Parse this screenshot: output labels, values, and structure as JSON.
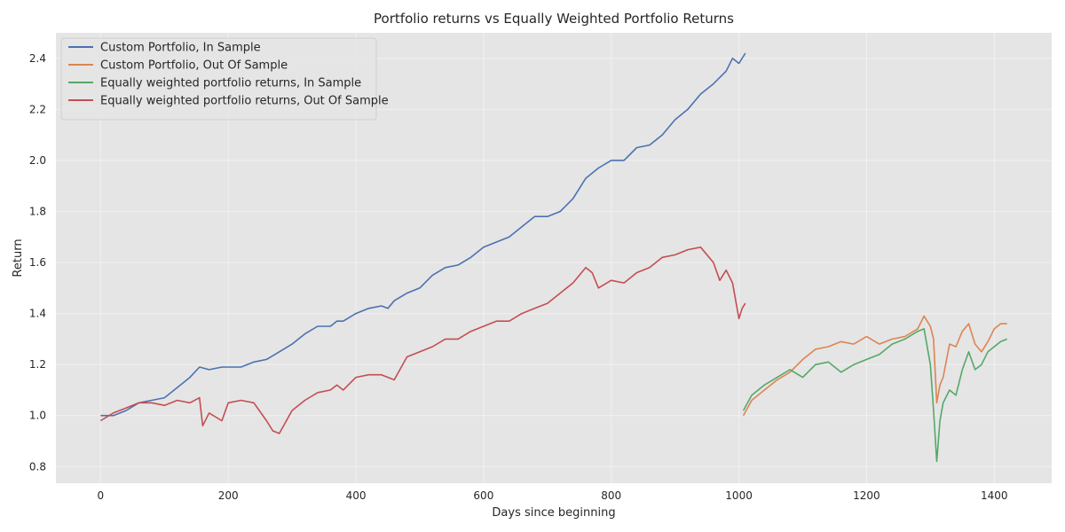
{
  "chart_data": {
    "type": "line",
    "title": "Portfolio returns vs Equally Weighted Portfolio Returns",
    "xlabel": "Days since beginning",
    "ylabel": "Return",
    "xlim": [
      -70,
      1490
    ],
    "ylim": [
      0.735,
      2.5
    ],
    "xticks": [
      0,
      200,
      400,
      600,
      800,
      1000,
      1200,
      1400
    ],
    "yticks": [
      0.8,
      1.0,
      1.2,
      1.4,
      1.6,
      1.8,
      2.0,
      2.2,
      2.4
    ],
    "grid": true,
    "legend_position": "top-left",
    "background": "#e5e5e5",
    "series": [
      {
        "name": "Custom Portfolio, In Sample",
        "color": "#4c72b0",
        "x": [
          0,
          20,
          40,
          60,
          80,
          100,
          120,
          140,
          155,
          170,
          190,
          200,
          220,
          240,
          260,
          280,
          300,
          320,
          340,
          360,
          370,
          380,
          400,
          420,
          440,
          450,
          460,
          480,
          500,
          520,
          540,
          560,
          580,
          600,
          620,
          640,
          660,
          680,
          700,
          720,
          740,
          760,
          770,
          780,
          800,
          820,
          840,
          860,
          880,
          900,
          920,
          940,
          960,
          980,
          990,
          1000,
          1010
        ],
        "y": [
          1.0,
          1.0,
          1.02,
          1.05,
          1.06,
          1.07,
          1.11,
          1.15,
          1.19,
          1.18,
          1.19,
          1.19,
          1.19,
          1.21,
          1.22,
          1.25,
          1.28,
          1.32,
          1.35,
          1.35,
          1.37,
          1.37,
          1.4,
          1.42,
          1.43,
          1.42,
          1.45,
          1.48,
          1.5,
          1.55,
          1.58,
          1.59,
          1.62,
          1.66,
          1.68,
          1.7,
          1.74,
          1.78,
          1.78,
          1.8,
          1.85,
          1.93,
          1.95,
          1.97,
          2.0,
          2.0,
          2.05,
          2.06,
          2.1,
          2.16,
          2.2,
          2.26,
          2.3,
          2.35,
          2.4,
          2.38,
          2.42
        ]
      },
      {
        "name": "Custom Portfolio, Out Of Sample",
        "color": "#dd8452",
        "x": [
          1007,
          1020,
          1040,
          1060,
          1080,
          1100,
          1120,
          1140,
          1160,
          1180,
          1200,
          1220,
          1240,
          1260,
          1280,
          1290,
          1300,
          1305,
          1310,
          1315,
          1320,
          1330,
          1340,
          1350,
          1360,
          1370,
          1380,
          1390,
          1400,
          1410,
          1420
        ],
        "y": [
          1.0,
          1.06,
          1.1,
          1.14,
          1.17,
          1.22,
          1.26,
          1.27,
          1.29,
          1.28,
          1.31,
          1.28,
          1.3,
          1.31,
          1.34,
          1.39,
          1.35,
          1.3,
          1.05,
          1.12,
          1.15,
          1.28,
          1.27,
          1.33,
          1.36,
          1.28,
          1.25,
          1.29,
          1.34,
          1.36,
          1.36
        ]
      },
      {
        "name": "Equally weighted portfolio returns, In Sample",
        "color": "#55a868",
        "x": [
          1007,
          1020,
          1040,
          1060,
          1080,
          1100,
          1120,
          1140,
          1160,
          1180,
          1200,
          1220,
          1240,
          1260,
          1280,
          1290,
          1300,
          1305,
          1310,
          1315,
          1320,
          1330,
          1340,
          1350,
          1360,
          1370,
          1380,
          1390,
          1400,
          1410,
          1420
        ],
        "y": [
          1.02,
          1.08,
          1.12,
          1.15,
          1.18,
          1.15,
          1.2,
          1.21,
          1.17,
          1.2,
          1.22,
          1.24,
          1.28,
          1.3,
          1.33,
          1.34,
          1.2,
          1.02,
          0.82,
          0.98,
          1.05,
          1.1,
          1.08,
          1.18,
          1.25,
          1.18,
          1.2,
          1.25,
          1.27,
          1.29,
          1.3
        ]
      },
      {
        "name": "Equally weighted portfolio returns, Out Of Sample",
        "color": "#c44e52",
        "x": [
          0,
          20,
          40,
          60,
          80,
          100,
          120,
          140,
          155,
          160,
          170,
          190,
          200,
          220,
          240,
          260,
          270,
          280,
          300,
          320,
          340,
          360,
          370,
          380,
          400,
          420,
          440,
          460,
          480,
          500,
          520,
          540,
          560,
          580,
          600,
          620,
          640,
          660,
          680,
          700,
          720,
          740,
          760,
          770,
          780,
          800,
          820,
          840,
          860,
          880,
          900,
          920,
          940,
          960,
          970,
          980,
          990,
          1000,
          1005,
          1010
        ],
        "y": [
          0.98,
          1.01,
          1.03,
          1.05,
          1.05,
          1.04,
          1.06,
          1.05,
          1.07,
          0.96,
          1.01,
          0.98,
          1.05,
          1.06,
          1.05,
          0.98,
          0.94,
          0.93,
          1.02,
          1.06,
          1.09,
          1.1,
          1.12,
          1.1,
          1.15,
          1.16,
          1.16,
          1.14,
          1.23,
          1.25,
          1.27,
          1.3,
          1.3,
          1.33,
          1.35,
          1.37,
          1.37,
          1.4,
          1.42,
          1.44,
          1.48,
          1.52,
          1.58,
          1.56,
          1.5,
          1.53,
          1.52,
          1.56,
          1.58,
          1.62,
          1.63,
          1.65,
          1.66,
          1.6,
          1.53,
          1.57,
          1.52,
          1.38,
          1.42,
          1.44
        ]
      }
    ]
  }
}
